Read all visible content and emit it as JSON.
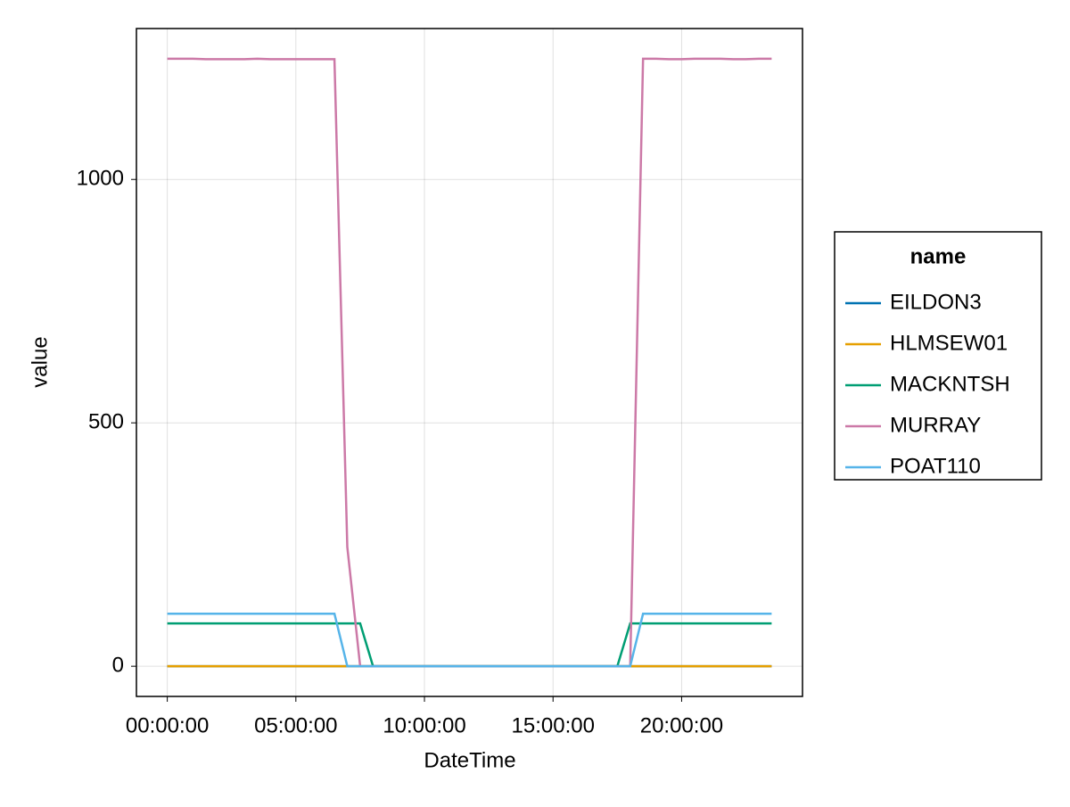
{
  "chart_data": {
    "type": "line",
    "x_label": "DateTime",
    "y_label": "value",
    "legend_title": "name",
    "x": [
      0,
      0.5,
      1,
      1.5,
      2,
      2.5,
      3,
      3.5,
      4,
      4.5,
      5,
      5.5,
      6,
      6.5,
      7,
      7.5,
      8,
      8.5,
      9,
      9.5,
      10,
      10.5,
      11,
      11.5,
      12,
      12.5,
      13,
      13.5,
      14,
      14.5,
      15,
      15.5,
      16,
      16.5,
      17,
      17.5,
      18,
      18.5,
      19,
      19.5,
      20,
      20.5,
      21,
      21.5,
      22,
      22.5,
      23,
      23.5
    ],
    "series": [
      {
        "name": "EILDON3",
        "color": "#0072b2",
        "values": [
          0,
          0,
          0,
          0,
          0,
          0,
          0,
          0,
          0,
          0,
          0,
          0,
          0,
          0,
          0,
          0,
          0,
          0,
          0,
          0,
          0,
          0,
          0,
          0,
          0,
          0,
          0,
          0,
          0,
          0,
          0,
          0,
          0,
          0,
          0,
          0,
          0,
          0,
          0,
          0,
          0,
          0,
          0,
          0,
          0,
          0,
          0,
          0
        ]
      },
      {
        "name": "HLMSEW01",
        "color": "#e69f00",
        "values": [
          0,
          0,
          0,
          0,
          0,
          0,
          0,
          0,
          0,
          0,
          0,
          0,
          0,
          0,
          0,
          0,
          0,
          0,
          0,
          0,
          0,
          0,
          0,
          0,
          0,
          0,
          0,
          0,
          0,
          0,
          0,
          0,
          0,
          0,
          0,
          0,
          0,
          0,
          0,
          0,
          0,
          0,
          0,
          0,
          0,
          0,
          0,
          0
        ]
      },
      {
        "name": "MACKNTSH",
        "color": "#009e73",
        "values": [
          88,
          88,
          88,
          88,
          88,
          88,
          88,
          88,
          88,
          88,
          88,
          88,
          88,
          88,
          88,
          88,
          0,
          0,
          0,
          0,
          0,
          0,
          0,
          0,
          0,
          0,
          0,
          0,
          0,
          0,
          0,
          0,
          0,
          0,
          0,
          0,
          88,
          88,
          88,
          88,
          88,
          88,
          88,
          88,
          88,
          88,
          88,
          88
        ]
      },
      {
        "name": "MURRAY",
        "color": "#cc79a7",
        "values": [
          1248,
          1248,
          1248,
          1247,
          1247,
          1247,
          1247,
          1248,
          1247,
          1247,
          1247,
          1247,
          1247,
          1247,
          245,
          0,
          0,
          0,
          0,
          0,
          0,
          0,
          0,
          0,
          0,
          0,
          0,
          0,
          0,
          0,
          0,
          0,
          0,
          0,
          0,
          0,
          0,
          1248,
          1248,
          1247,
          1247,
          1248,
          1248,
          1248,
          1247,
          1247,
          1248,
          1248
        ]
      },
      {
        "name": "POAT110",
        "color": "#56b4e9",
        "values": [
          108,
          108,
          108,
          108,
          108,
          108,
          108,
          108,
          108,
          108,
          108,
          108,
          108,
          108,
          0,
          0,
          0,
          0,
          0,
          0,
          0,
          0,
          0,
          0,
          0,
          0,
          0,
          0,
          0,
          0,
          0,
          0,
          0,
          0,
          0,
          0,
          0,
          108,
          108,
          108,
          108,
          108,
          108,
          108,
          108,
          108,
          108,
          108
        ]
      }
    ],
    "xlim": [
      -1.2,
      24.7
    ],
    "xticks": [
      {
        "value": 0,
        "label": "00:00:00"
      },
      {
        "value": 5,
        "label": "05:00:00"
      },
      {
        "value": 10,
        "label": "10:00:00"
      },
      {
        "value": 15,
        "label": "15:00:00"
      },
      {
        "value": 20,
        "label": "20:00:00"
      }
    ],
    "ylim": [
      -62,
      1310
    ],
    "yticks": [
      0,
      500,
      1000
    ],
    "grid": true,
    "legend": "right"
  }
}
